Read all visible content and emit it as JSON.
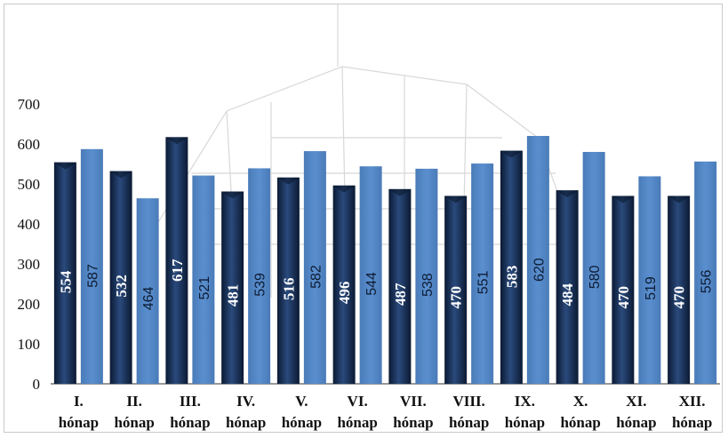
{
  "chart_data": {
    "type": "bar",
    "title": "",
    "xlabel": "",
    "ylabel": "",
    "ylim": [
      0,
      700
    ],
    "yticks": [
      0,
      100,
      200,
      300,
      400,
      500,
      600,
      700
    ],
    "grid": false,
    "legend": "none",
    "categories": [
      [
        "I.",
        "hónap"
      ],
      [
        "II.",
        "hónap"
      ],
      [
        "III.",
        "hónap"
      ],
      [
        "IV.",
        "hónap"
      ],
      [
        "V.",
        "hónap"
      ],
      [
        "VI.",
        "hónap"
      ],
      [
        "VII.",
        "hónap"
      ],
      [
        "VIII.",
        "hónap"
      ],
      [
        "IX.",
        "hónap"
      ],
      [
        "X.",
        "hónap"
      ],
      [
        "XI.",
        "hónap"
      ],
      [
        "XII.",
        "hónap"
      ]
    ],
    "series": [
      {
        "values": [
          554,
          532,
          617,
          481,
          516,
          496,
          487,
          470,
          583,
          484,
          470,
          470
        ],
        "color": "#1f3a66"
      },
      {
        "values": [
          587,
          464,
          521,
          539,
          582,
          544,
          538,
          551,
          620,
          580,
          519,
          556
        ],
        "color": "#4f81bd"
      }
    ],
    "data_labels": "vertical, inside bars"
  }
}
